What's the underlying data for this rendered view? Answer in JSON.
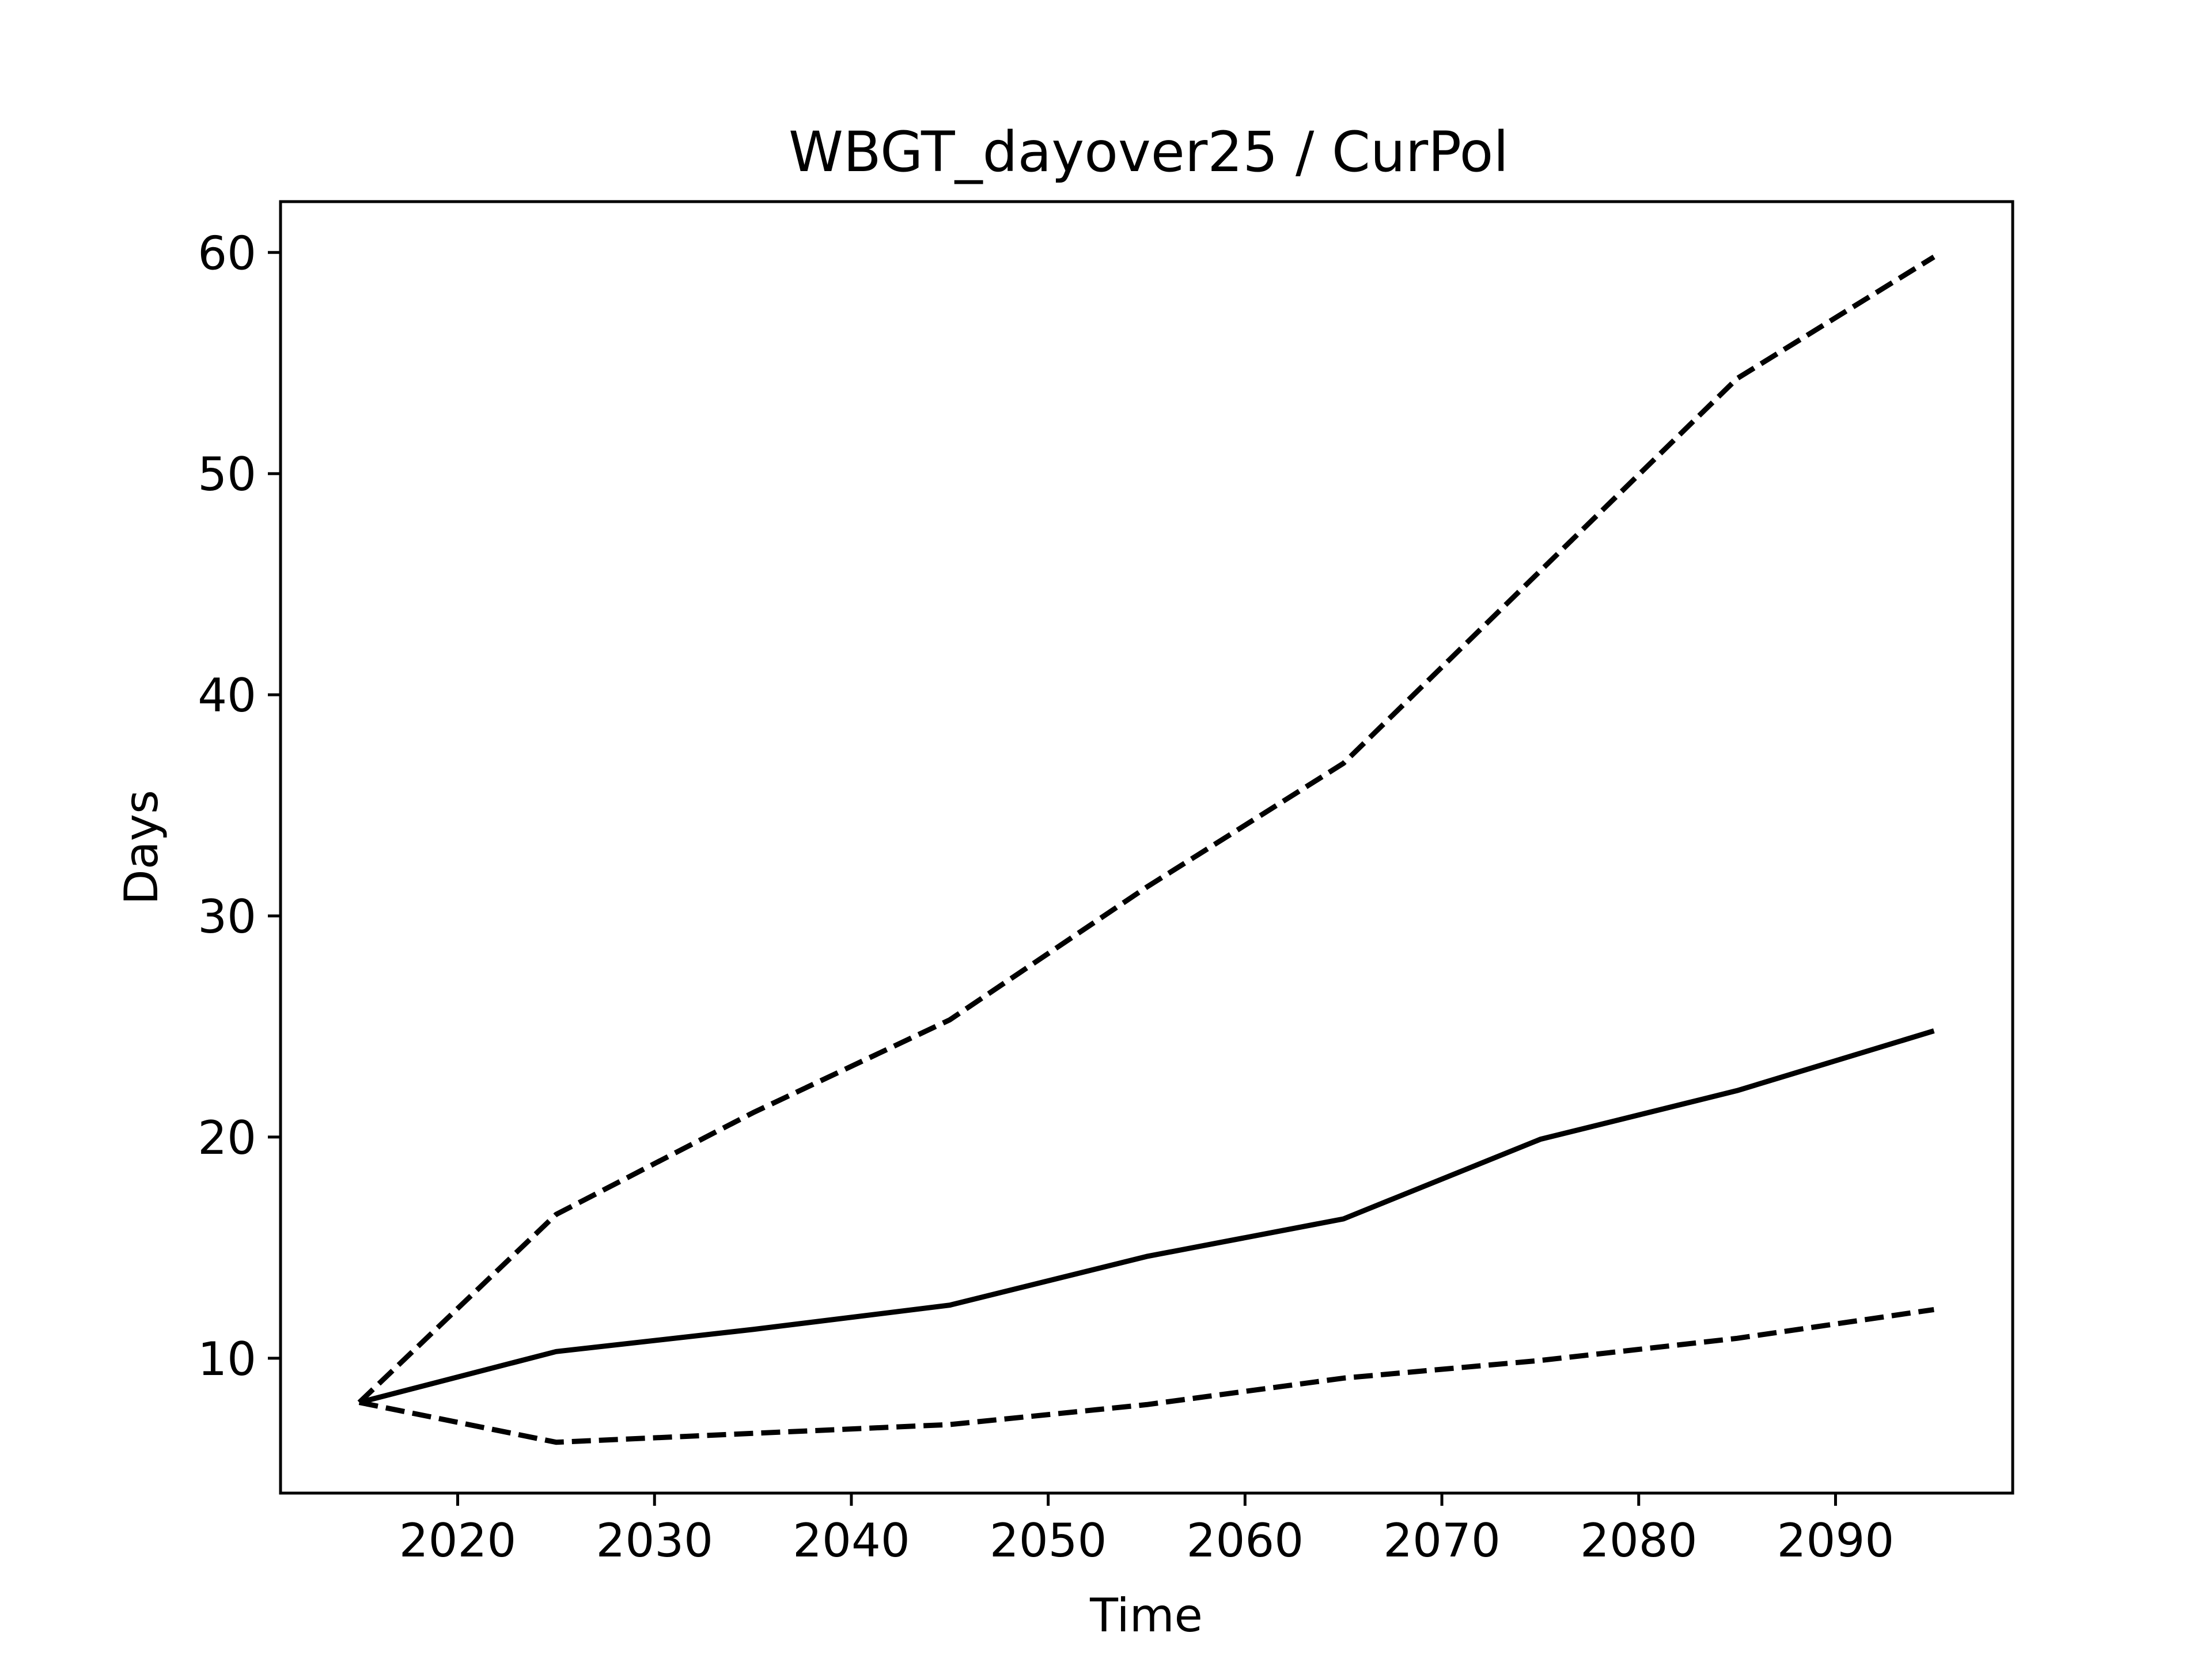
{
  "chart_data": {
    "type": "line",
    "title": "WBGT_dayover25 / CurPol",
    "xlabel": "Time",
    "ylabel": "Days",
    "xlim": [
      2011,
      2099
    ],
    "ylim": [
      3.9,
      62.3
    ],
    "x_ticks": [
      2020,
      2030,
      2040,
      2050,
      2060,
      2070,
      2080,
      2090
    ],
    "y_ticks": [
      10,
      20,
      30,
      40,
      50,
      60
    ],
    "grid": false,
    "x": [
      2015,
      2025,
      2035,
      2045,
      2055,
      2065,
      2075,
      2085,
      2095
    ],
    "series": [
      {
        "style": "solid",
        "color": "#000000",
        "values": [
          8.0,
          10.3,
          11.3,
          12.4,
          14.6,
          16.3,
          19.9,
          22.1,
          24.8
        ]
      },
      {
        "style": "dashed",
        "color": "#000000",
        "values": [
          8.0,
          16.5,
          21.1,
          25.3,
          31.3,
          36.9,
          45.6,
          54.3,
          59.8
        ]
      },
      {
        "style": "dashed",
        "color": "#000000",
        "values": [
          8.0,
          6.2,
          6.6,
          7.0,
          7.9,
          9.1,
          9.9,
          10.9,
          12.2
        ]
      }
    ]
  }
}
